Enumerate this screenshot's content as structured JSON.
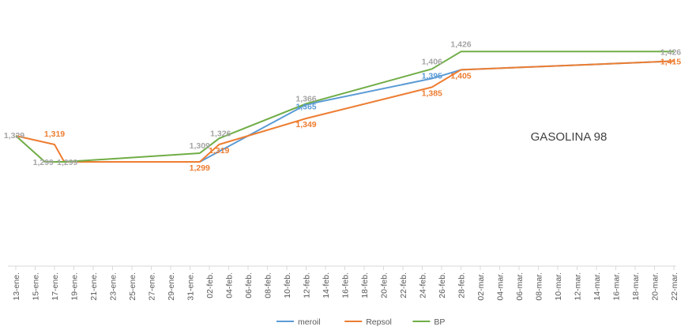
{
  "chart_data": {
    "type": "line",
    "title": "GASOLINA 98",
    "legend_position": "bottom",
    "grid": false,
    "y_axis_visible": false,
    "ylim": [
      1.0,
      1.5
    ],
    "x_ticks": [
      "13-ene.",
      "15-ene.",
      "17-ene.",
      "19-ene.",
      "21-ene.",
      "23-ene.",
      "25-ene.",
      "27-ene.",
      "29-ene.",
      "31-ene.",
      "02-feb.",
      "04-feb.",
      "06-feb.",
      "08-feb.",
      "10-feb.",
      "12-feb.",
      "14-feb.",
      "16-feb.",
      "18-feb.",
      "20-feb.",
      "22-feb.",
      "24-feb.",
      "26-feb.",
      "28-feb.",
      "02-mar.",
      "04-mar.",
      "06-mar.",
      "08-mar.",
      "10-mar.",
      "12-mar.",
      "14-mar.",
      "16-mar.",
      "18-mar.",
      "20-mar.",
      "22-mar."
    ],
    "series": [
      {
        "name": "meroil",
        "color": "#5B9BD5",
        "points": [
          {
            "x": "18-ene.",
            "y": 1.299,
            "label": ""
          },
          {
            "x": "01-feb.",
            "y": 1.299,
            "label": ""
          },
          {
            "x": "12-feb.",
            "y": 1.365,
            "label": "1,365"
          },
          {
            "x": "25-feb.",
            "y": 1.395,
            "label": "1,395"
          },
          {
            "x": "28-feb.",
            "y": 1.405,
            "label": ""
          },
          {
            "x": "22-mar.",
            "y": 1.415,
            "label": ""
          }
        ]
      },
      {
        "name": "Repsol",
        "color": "#ED7D31",
        "points": [
          {
            "x": "13-ene.",
            "y": 1.329,
            "label": ""
          },
          {
            "x": "17-ene.",
            "y": 1.319,
            "label": "1,319"
          },
          {
            "x": "18-ene.",
            "y": 1.299,
            "label": ""
          },
          {
            "x": "01-feb.",
            "y": 1.299,
            "label": "1,299"
          },
          {
            "x": "03-feb.",
            "y": 1.319,
            "label": "1,319"
          },
          {
            "x": "12-feb.",
            "y": 1.349,
            "label": "1,349"
          },
          {
            "x": "25-feb.",
            "y": 1.385,
            "label": "1,385"
          },
          {
            "x": "28-feb.",
            "y": 1.405,
            "label": "1,405"
          },
          {
            "x": "22-mar.",
            "y": 1.415,
            "label": "1,415"
          }
        ]
      },
      {
        "name": "BP",
        "color": "#70AD47",
        "points": [
          {
            "x": "13-ene.",
            "y": 1.329,
            "label": "1,329"
          },
          {
            "x": "16-ene.",
            "y": 1.299,
            "label": "1,299"
          },
          {
            "x": "18-ene.",
            "y": 1.299,
            "label": "1,299"
          },
          {
            "x": "01-feb.",
            "y": 1.309,
            "label": "1,309"
          },
          {
            "x": "03-feb.",
            "y": 1.326,
            "label": "1,326"
          },
          {
            "x": "12-feb.",
            "y": 1.366,
            "label": "1,366"
          },
          {
            "x": "25-feb.",
            "y": 1.406,
            "label": "1,406"
          },
          {
            "x": "28-feb.",
            "y": 1.426,
            "label": "1,426"
          },
          {
            "x": "22-mar.",
            "y": 1.426,
            "label": "1,426"
          }
        ]
      }
    ]
  }
}
